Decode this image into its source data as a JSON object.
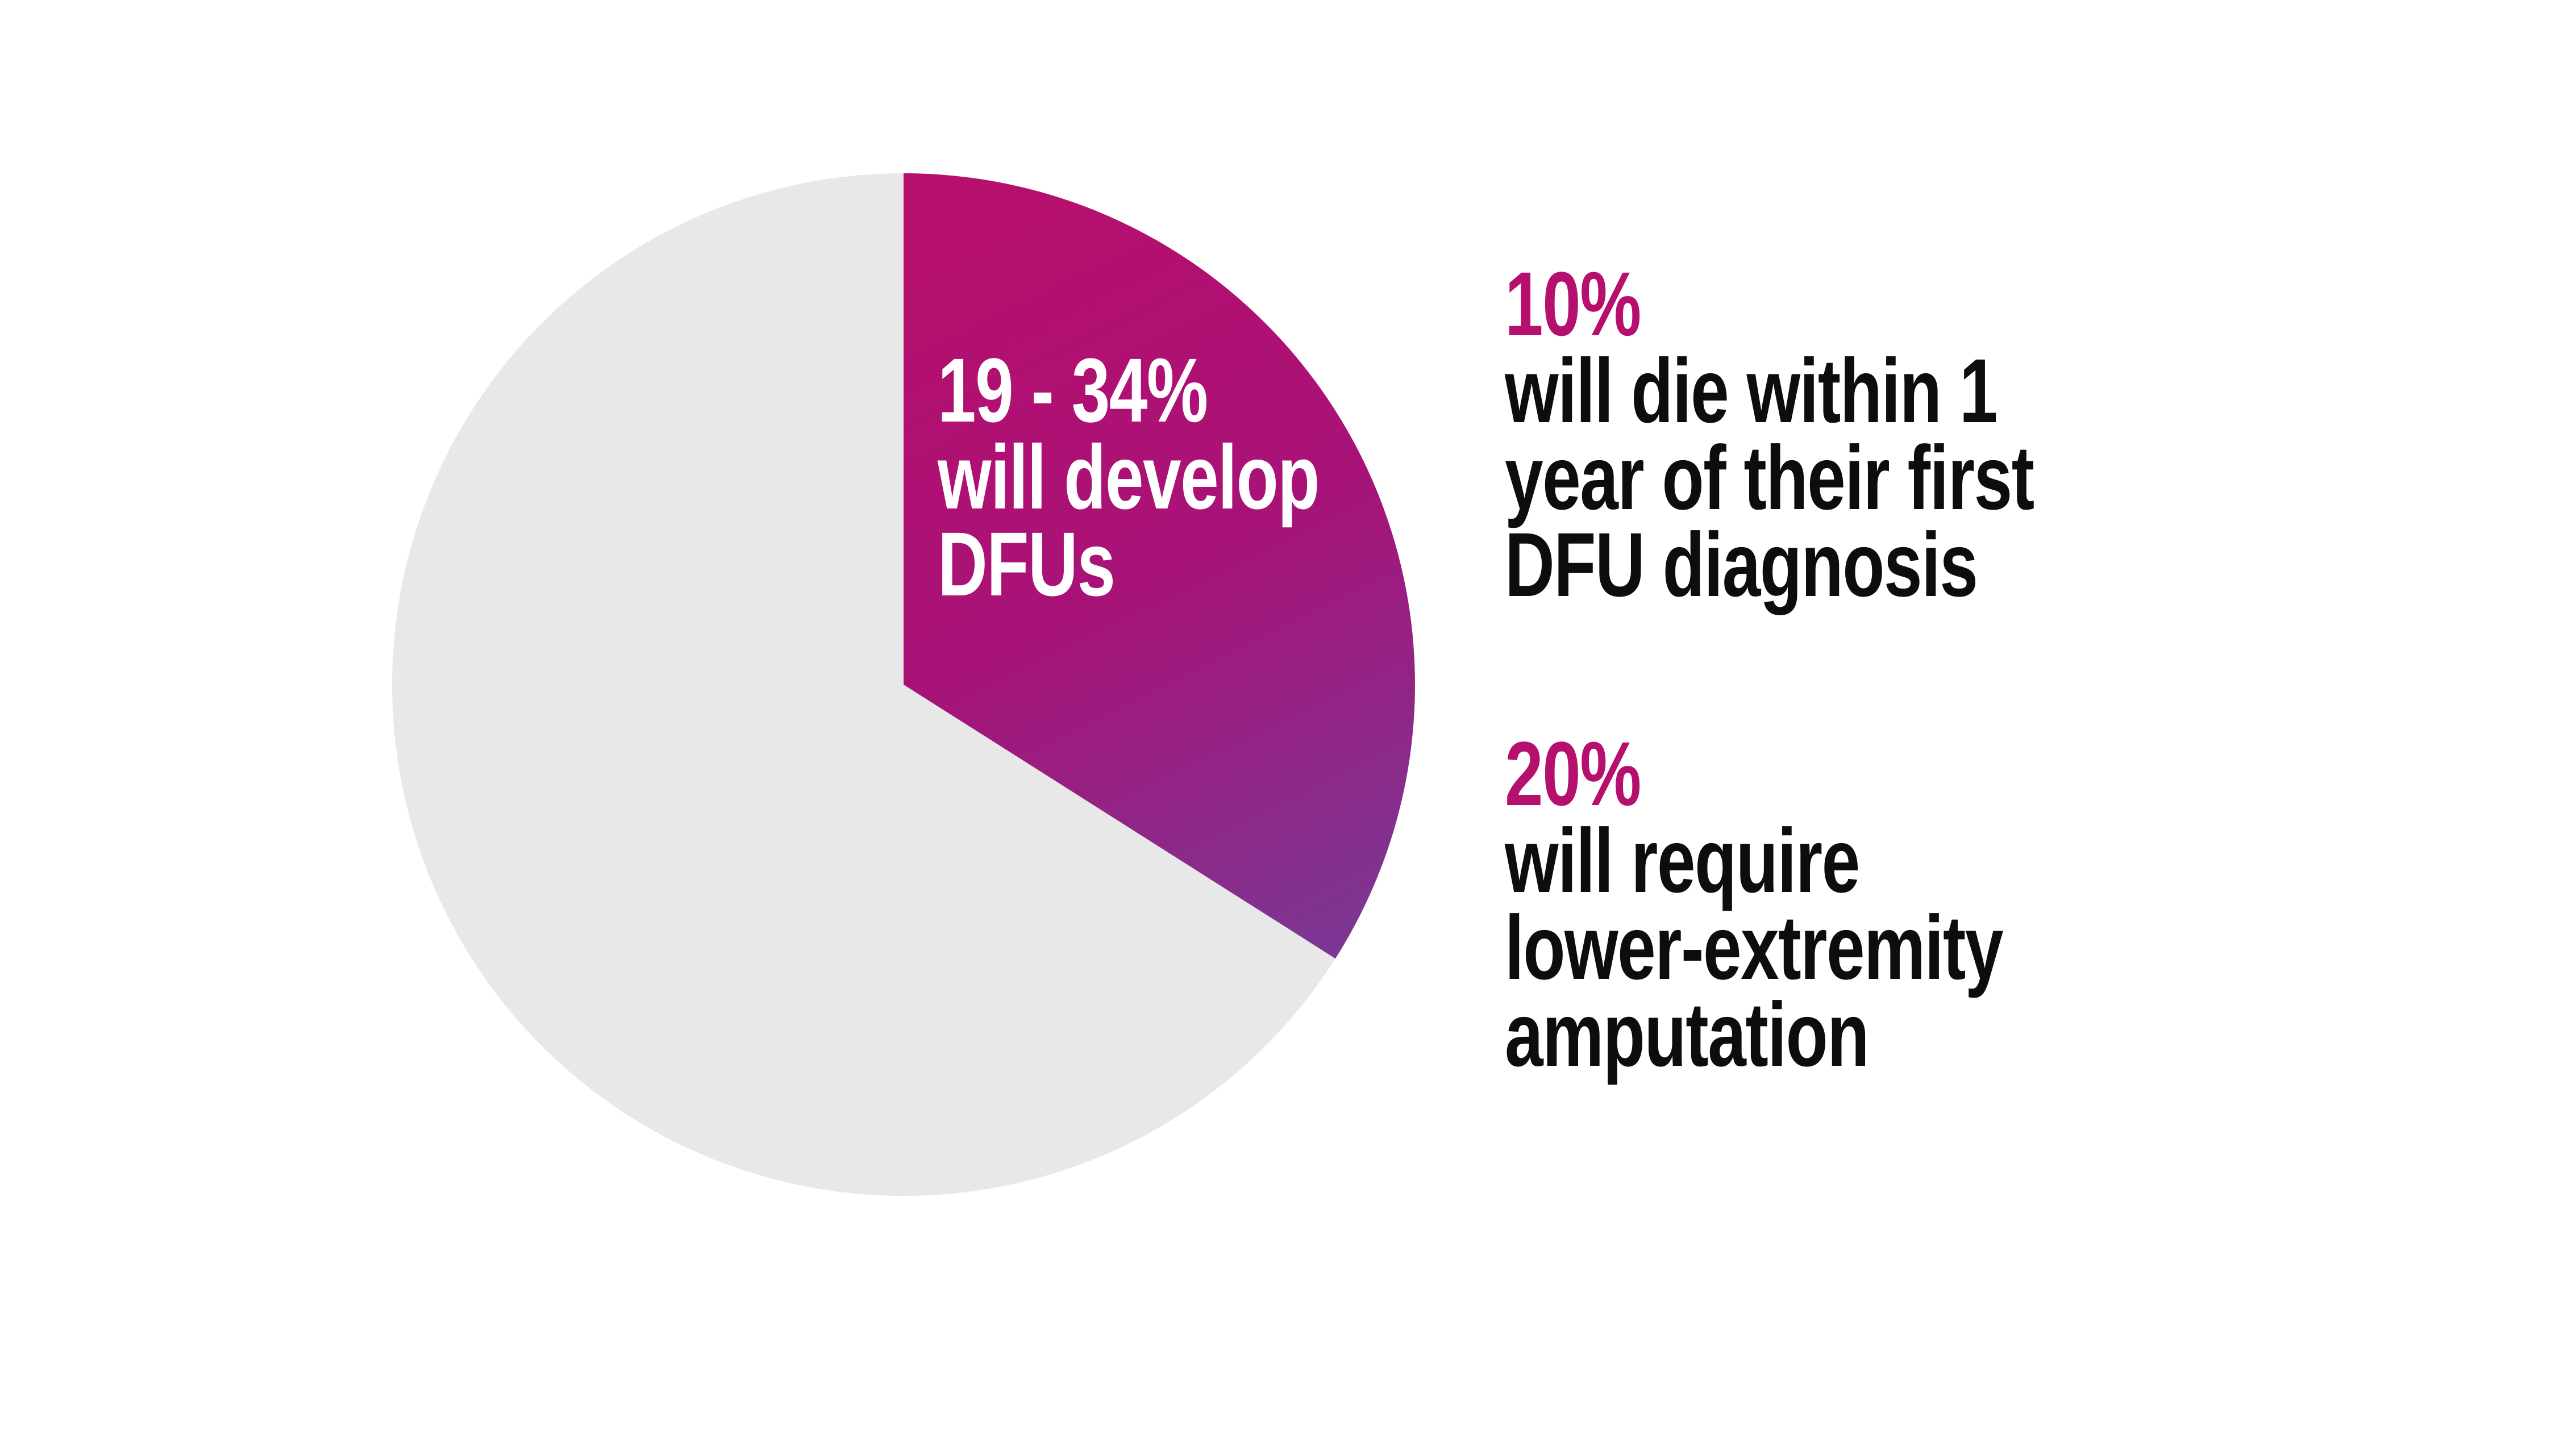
{
  "page": {
    "background": "#ffffff"
  },
  "colors": {
    "accent_magenta": "#b5106e",
    "accent_purple": "#7b3794",
    "pie_remainder_gray": "#e8e8e8",
    "body_text": "#0d0d0d",
    "pie_label_text": "#ffffff"
  },
  "chart_data": {
    "type": "pie",
    "title": "",
    "start_angle_deg": 0,
    "direction": "clockwise",
    "legend_position": "none",
    "slices": [
      {
        "name": "develop-dfus",
        "label": "19 - 34% will develop DFUs",
        "value": 34,
        "gradient": [
          "#b5106e",
          "#a81277",
          "#7b3794"
        ]
      },
      {
        "name": "remainder",
        "label": "",
        "value": 66,
        "color": "#e8e8e8"
      }
    ],
    "slice_label": {
      "lines": [
        "19 - 34%",
        "will develop",
        "DFUs"
      ],
      "color": "#ffffff"
    }
  },
  "stats": [
    {
      "value": "10%",
      "value_color": "#b5106e",
      "lines": [
        "will die within 1",
        "year of their first",
        "DFU diagnosis"
      ]
    },
    {
      "value": "20%",
      "value_color": "#b5106e",
      "lines": [
        "will require",
        "lower-extremity",
        "amputation"
      ]
    }
  ]
}
